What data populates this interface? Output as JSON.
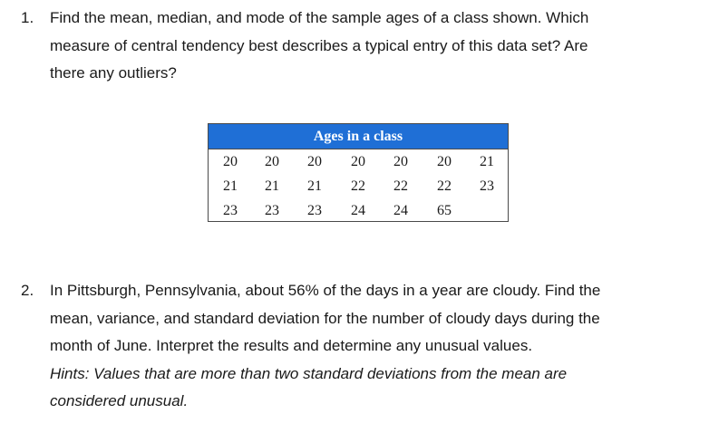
{
  "question1": {
    "number": "1.",
    "lines": [
      "Find the mean, median, and mode of the sample ages of a class shown. Which",
      "measure of central tendency best describes a typical entry of this data set? Are",
      "there any outliers?"
    ]
  },
  "ages_table": {
    "title": "Ages in a class",
    "header_color": "#1f6fd6",
    "rows": [
      [
        "20",
        "20",
        "20",
        "20",
        "20",
        "20",
        "21"
      ],
      [
        "21",
        "21",
        "21",
        "22",
        "22",
        "22",
        "23"
      ],
      [
        "23",
        "23",
        "23",
        "24",
        "24",
        "65",
        ""
      ]
    ]
  },
  "question2": {
    "number": "2.",
    "lines": [
      "In Pittsburgh, Pennsylvania, about 56% of the days in a year are cloudy. Find the",
      "mean, variance, and standard deviation for the number of cloudy days during the",
      "month of June. Interpret the results and determine any unusual values."
    ],
    "hint_lines": [
      "Hints: Values that are more than two standard deviations from the mean are",
      "considered unusual."
    ]
  }
}
